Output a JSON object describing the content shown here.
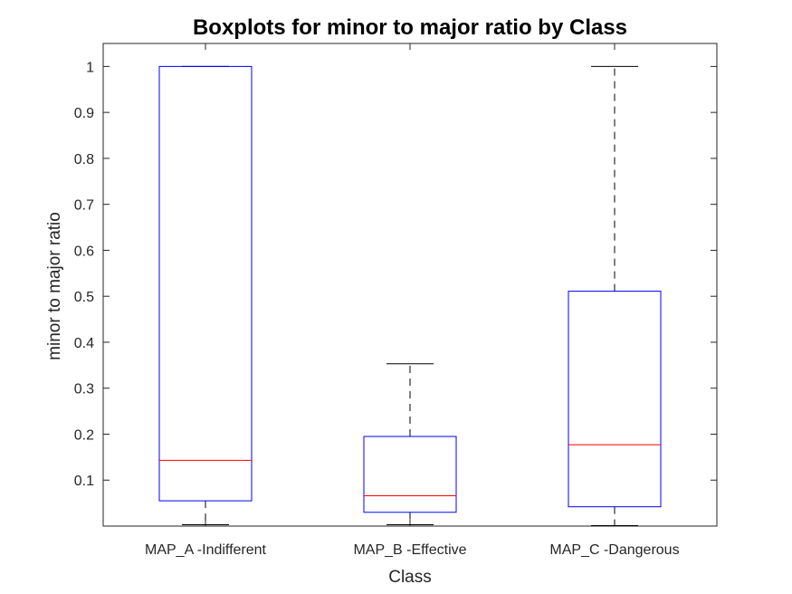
{
  "chart_data": {
    "type": "boxplot",
    "title": "Boxplots for minor to major ratio by Class",
    "xlabel": "Class",
    "ylabel": "minor to major ratio",
    "ylim": [
      0,
      1.05
    ],
    "yticks": [
      0.1,
      0.2,
      0.3,
      0.4,
      0.5,
      0.6,
      0.7,
      0.8,
      0.9,
      1
    ],
    "ytick_labels": [
      "0.1",
      "0.2",
      "0.3",
      "0.4",
      "0.5",
      "0.6",
      "0.7",
      "0.8",
      "0.9",
      "1"
    ],
    "grid": false,
    "categories": [
      "MAP_A -Indifferent",
      "MAP_B -Effective",
      "MAP_C -Dangerous"
    ],
    "boxes": [
      {
        "category": "MAP_A -Indifferent",
        "whisker_low": 0.003,
        "q1": 0.055,
        "median": 0.143,
        "q3": 1.0,
        "whisker_high": 1.0
      },
      {
        "category": "MAP_B -Effective",
        "whisker_low": 0.003,
        "q1": 0.03,
        "median": 0.066,
        "q3": 0.195,
        "whisker_high": 0.353
      },
      {
        "category": "MAP_C -Dangerous",
        "whisker_low": 0.001,
        "q1": 0.042,
        "median": 0.177,
        "q3": 0.511,
        "whisker_high": 1.0
      }
    ],
    "colors": {
      "box": "#0000ff",
      "median": "#ff0000",
      "whisker": "#000000",
      "axes": "#262626"
    }
  }
}
